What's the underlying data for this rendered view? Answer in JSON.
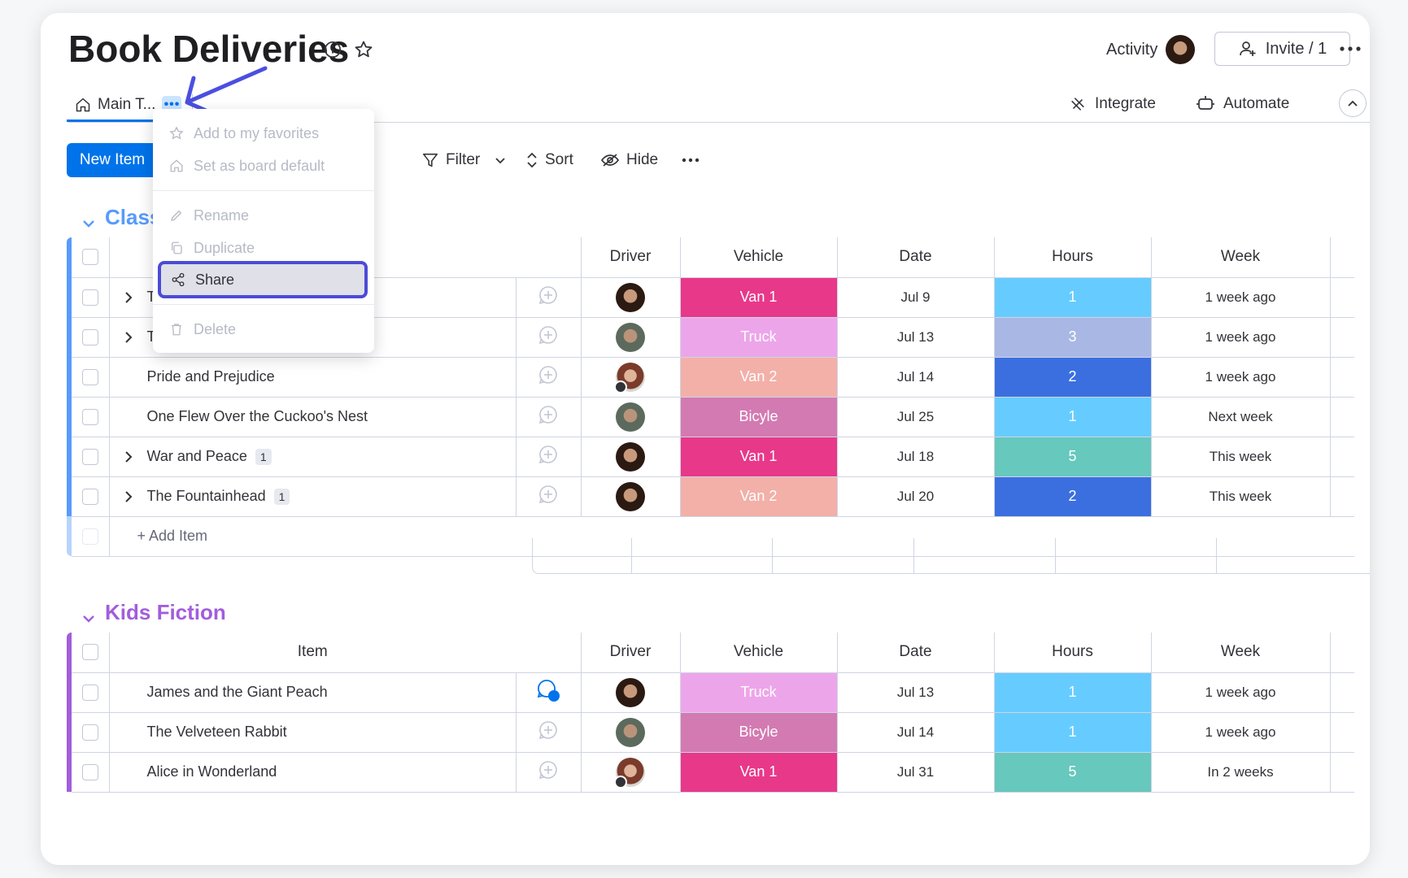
{
  "board": {
    "title": "Book Deliveries",
    "activity_label": "Activity",
    "invite_label": "Invite / 1",
    "tab_label": "Main T...",
    "integrate_label": "Integrate",
    "automate_label": "Automate",
    "new_item_label": "New Item",
    "filter_label": "Filter",
    "sort_label": "Sort",
    "hide_label": "Hide"
  },
  "menu": {
    "items": [
      {
        "label": "Add to my favorites",
        "icon": "star-icon",
        "enabled": false
      },
      {
        "label": "Set as board default",
        "icon": "home-icon",
        "enabled": false
      },
      {
        "label": "Rename",
        "icon": "pencil-icon",
        "enabled": false
      },
      {
        "label": "Duplicate",
        "icon": "copy-icon",
        "enabled": false
      },
      {
        "label": "Share",
        "icon": "share-icon",
        "enabled": true,
        "highlighted": true
      },
      {
        "label": "Delete",
        "icon": "trash-icon",
        "enabled": false
      }
    ]
  },
  "columns": {
    "item": "Item",
    "driver": "Driver",
    "vehicle": "Vehicle",
    "date": "Date",
    "hours": "Hours",
    "week": "Week"
  },
  "groups": [
    {
      "title": "Class",
      "color": "#579bfc",
      "title_color": "#579bfc",
      "add_item_label": "+ Add Item",
      "rows": [
        {
          "name": "To",
          "expandable": true,
          "subitems": "",
          "vehicle": "Van 1",
          "vehicle_color": "#e8388a",
          "date": "Jul 9",
          "hours": "1",
          "hours_color": "#66ccff",
          "week": "1 week ago",
          "avatar": "p1"
        },
        {
          "name": "Th",
          "expandable": true,
          "subitems": "",
          "vehicle": "Truck",
          "vehicle_color": "#eda5ea",
          "date": "Jul 13",
          "hours": "3",
          "hours_color": "#a9b7e4",
          "week": "1 week ago",
          "avatar": "p2"
        },
        {
          "name": "Pride and Prejudice",
          "expandable": false,
          "subitems": "",
          "vehicle": "Van 2",
          "vehicle_color": "#f2b0a8",
          "date": "Jul 14",
          "hours": "2",
          "hours_color": "#3b6fe0",
          "week": "1 week ago",
          "avatar": "p3"
        },
        {
          "name": "One Flew Over the Cuckoo's Nest",
          "expandable": false,
          "subitems": "",
          "vehicle": "Bicyle",
          "vehicle_color": "#d37ab2",
          "date": "Jul 25",
          "hours": "1",
          "hours_color": "#66ccff",
          "week": "Next week",
          "avatar": "p2"
        },
        {
          "name": "War and Peace",
          "expandable": true,
          "subitems": "1",
          "vehicle": "Van 1",
          "vehicle_color": "#e8388a",
          "date": "Jul 18",
          "hours": "5",
          "hours_color": "#67c8bd",
          "week": "This week",
          "avatar": "p1"
        },
        {
          "name": "The Fountainhead",
          "expandable": true,
          "subitems": "1",
          "vehicle": "Van 2",
          "vehicle_color": "#f2b0a8",
          "date": "Jul 20",
          "hours": "2",
          "hours_color": "#3b6fe0",
          "week": "This week",
          "avatar": "p1"
        }
      ]
    },
    {
      "title": "Kids Fiction",
      "color": "#a25ddc",
      "title_color": "#a25ddc",
      "rows": [
        {
          "name": "James and the Giant Peach",
          "expandable": false,
          "subitems": "",
          "vehicle": "Truck",
          "vehicle_color": "#eda5ea",
          "date": "Jul 13",
          "hours": "1",
          "hours_color": "#66ccff",
          "week": "1 week ago",
          "avatar": "p1",
          "updates": "1"
        },
        {
          "name": "The Velveteen Rabbit",
          "expandable": false,
          "subitems": "",
          "vehicle": "Bicyle",
          "vehicle_color": "#d37ab2",
          "date": "Jul 14",
          "hours": "1",
          "hours_color": "#66ccff",
          "week": "1 week ago",
          "avatar": "p2"
        },
        {
          "name": "Alice in Wonderland",
          "expandable": false,
          "subitems": "",
          "vehicle": "Van 1",
          "vehicle_color": "#e8388a",
          "date": "Jul 31",
          "hours": "5",
          "hours_color": "#67c8bd",
          "week": "In 2 weeks",
          "avatar": "p3"
        }
      ]
    }
  ]
}
